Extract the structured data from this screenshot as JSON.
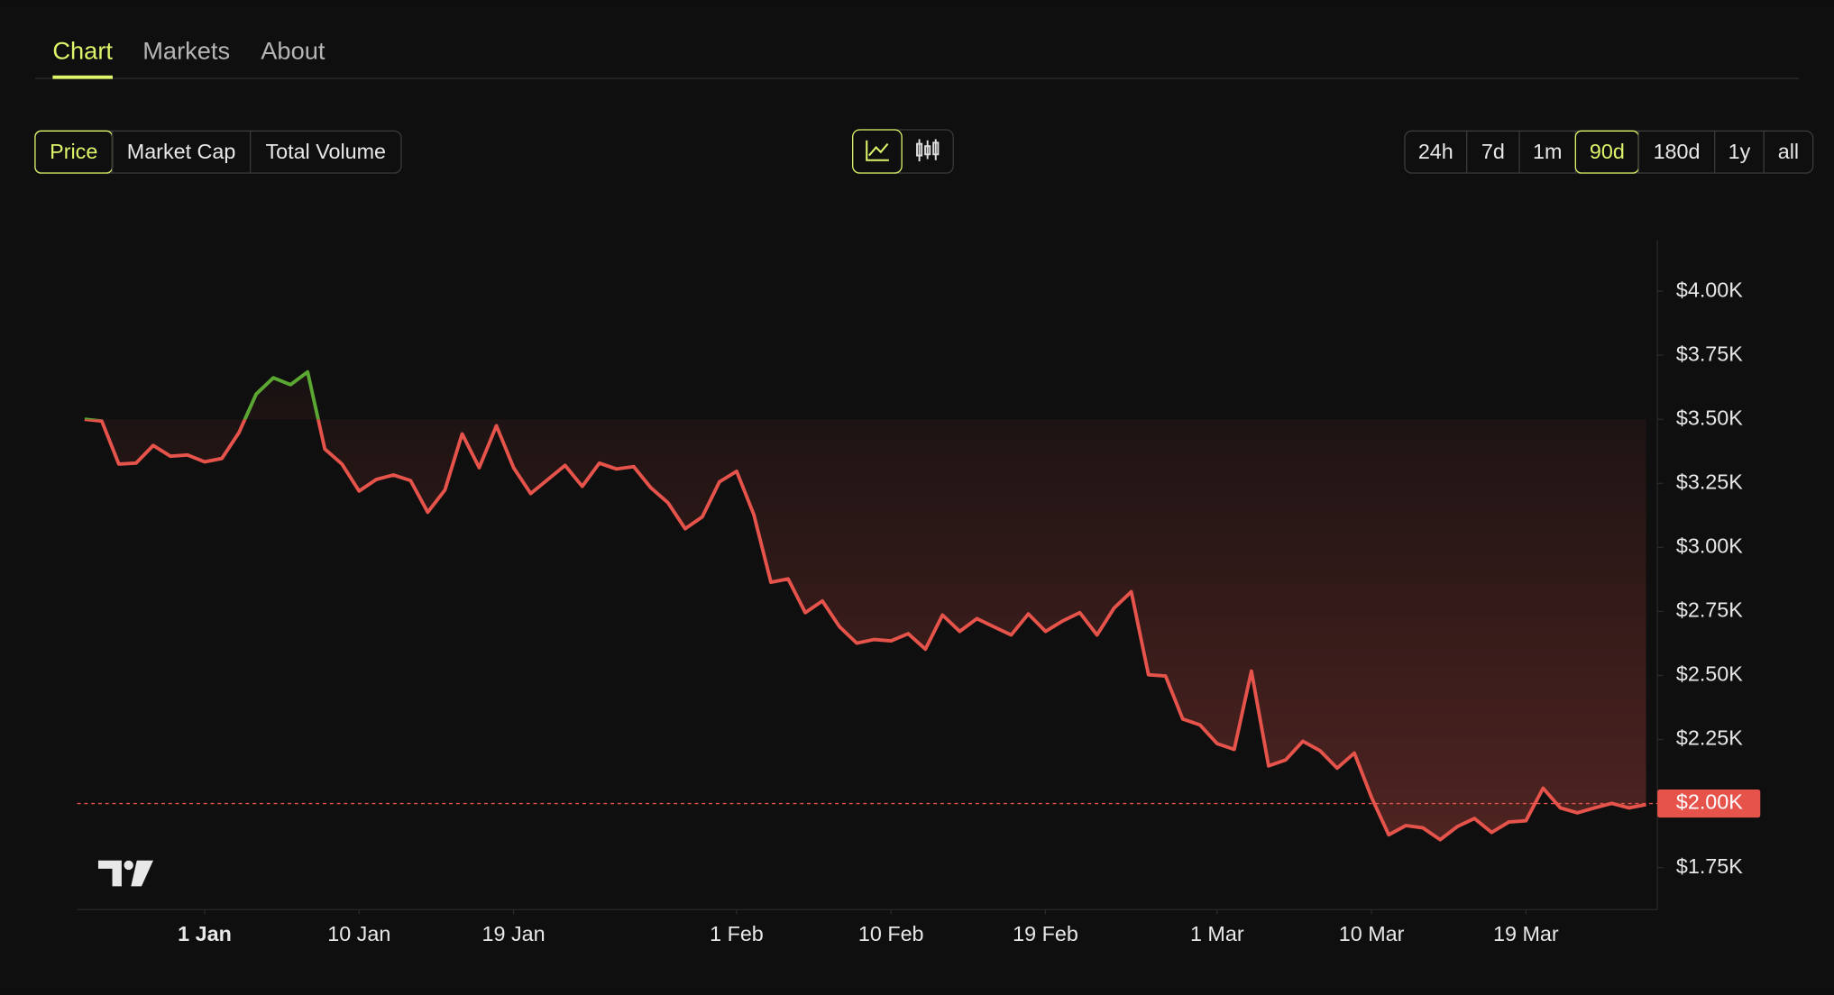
{
  "tabs": [
    "Chart",
    "Markets",
    "About"
  ],
  "active_tab": 0,
  "metric_buttons": [
    "Price",
    "Market Cap",
    "Total Volume"
  ],
  "active_metric": 0,
  "range_buttons": [
    "24h",
    "7d",
    "1m",
    "90d",
    "180d",
    "1y",
    "all"
  ],
  "active_range": 3,
  "chart_data": {
    "type": "line",
    "x": [
      -7,
      -6,
      -5,
      -4,
      -3,
      -2,
      -1,
      0,
      1,
      2,
      3,
      4,
      5,
      6,
      7,
      8,
      9,
      10,
      11,
      12,
      13,
      14,
      15,
      16,
      17,
      18,
      19,
      20,
      21,
      22,
      23,
      24,
      25,
      26,
      27,
      28,
      29,
      30,
      31,
      32,
      33,
      34,
      35,
      36,
      37,
      38,
      39,
      40,
      41,
      42,
      43,
      44,
      45,
      46,
      47,
      48,
      49,
      50,
      51,
      52,
      53,
      54,
      55,
      56,
      57,
      58,
      59,
      60,
      61,
      62,
      63,
      64,
      65,
      66,
      67,
      68,
      69,
      70,
      71,
      72,
      73,
      74,
      75,
      76,
      77,
      78,
      79,
      80,
      81,
      82,
      83,
      84
    ],
    "values": [
      3500,
      3493,
      3325,
      3329,
      3398,
      3356,
      3361,
      3334,
      3347,
      3448,
      3598,
      3662,
      3635,
      3685,
      3384,
      3325,
      3220,
      3265,
      3283,
      3261,
      3137,
      3224,
      3443,
      3311,
      3475,
      3311,
      3210,
      3265,
      3320,
      3238,
      3329,
      3306,
      3315,
      3233,
      3174,
      3073,
      3119,
      3256,
      3297,
      3128,
      2864,
      2877,
      2745,
      2791,
      2690,
      2626,
      2640,
      2635,
      2663,
      2603,
      2736,
      2672,
      2722,
      2690,
      2658,
      2740,
      2672,
      2713,
      2745,
      2658,
      2763,
      2827,
      2503,
      2498,
      2330,
      2307,
      2234,
      2211,
      2517,
      2147,
      2170,
      2243,
      2206,
      2138,
      2197,
      2024,
      1878,
      1914,
      1905,
      1859,
      1910,
      1942,
      1887,
      1928,
      1933,
      2060,
      1983,
      1964,
      1983,
      2001,
      1983,
      1996
    ],
    "color": "#e5534b",
    "up_color": "#5aa832",
    "baseline": 3500,
    "price_line": {
      "value": 2000,
      "label": "$2.00K"
    },
    "xlim": [
      -7.43,
      84.66
    ],
    "xticks": [
      {
        "value": 0,
        "label": "1 Jan"
      },
      {
        "value": 9,
        "label": "10 Jan"
      },
      {
        "value": 18,
        "label": "19 Jan"
      },
      {
        "value": 31,
        "label": "1 Feb"
      },
      {
        "value": 40,
        "label": "10 Feb"
      },
      {
        "value": 49,
        "label": "19 Feb"
      },
      {
        "value": 59,
        "label": "1 Mar"
      },
      {
        "value": 68,
        "label": "10 Mar"
      },
      {
        "value": 77,
        "label": "19 Mar"
      }
    ],
    "ylim": [
      1586,
      4201
    ],
    "yticks": [
      {
        "value": 1750,
        "label": "$1.75K"
      },
      {
        "value": 2250,
        "label": "$2.25K"
      },
      {
        "value": 2500,
        "label": "$2.50K"
      },
      {
        "value": 2750,
        "label": "$2.75K"
      },
      {
        "value": 3000,
        "label": "$3.00K"
      },
      {
        "value": 3250,
        "label": "$3.25K"
      },
      {
        "value": 3500,
        "label": "$3.50K"
      },
      {
        "value": 3750,
        "label": "$3.75K"
      },
      {
        "value": 4000,
        "label": "$4.00K"
      }
    ]
  }
}
